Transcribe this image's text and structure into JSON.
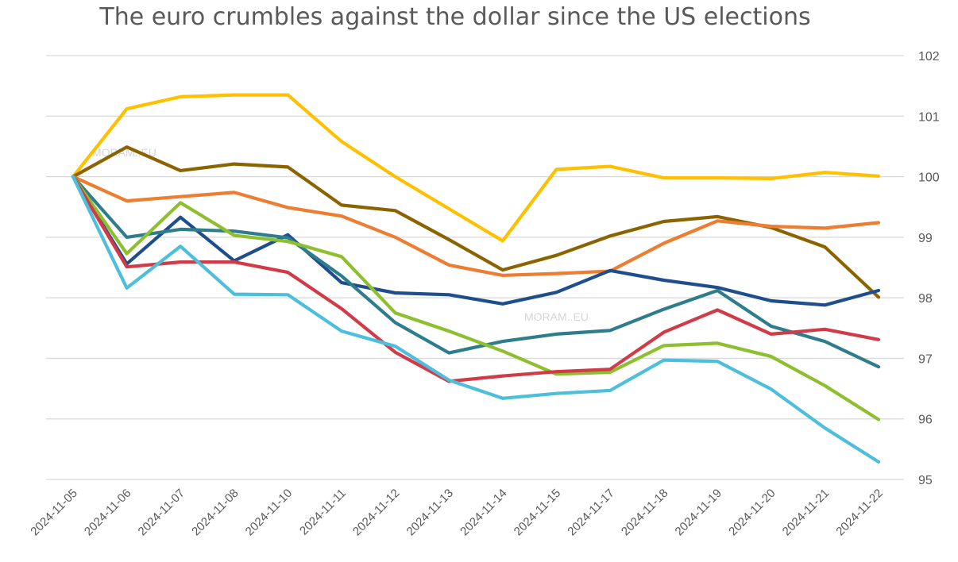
{
  "chart_data": {
    "type": "line",
    "title": "The euro crumbles against the dollar since the US elections",
    "xlabel": "",
    "ylabel": "",
    "ylim": [
      95,
      102
    ],
    "yticks": [
      95,
      96,
      97,
      98,
      99,
      100,
      101,
      102
    ],
    "grid": true,
    "y_axis_side": "right",
    "watermarks": [
      "MORAM..EU",
      "MORAM..EU"
    ],
    "categories": [
      "2024-11-05",
      "2024-11-06",
      "2024-11-07",
      "2024-11-08",
      "2024-11-10",
      "2024-11-11",
      "2024-11-12",
      "2024-11-13",
      "2024-11-14",
      "2024-11-15",
      "2024-11-17",
      "2024-11-18",
      "2024-11-19",
      "2024-11-20",
      "2024-11-21",
      "2024-11-22"
    ],
    "series": [
      {
        "color": "#FFC000",
        "values": [
          100,
          101.12,
          101.32,
          101.35,
          101.35,
          100.58,
          100.0,
          99.47,
          98.94,
          100.12,
          100.17,
          99.98,
          99.98,
          99.97,
          100.07,
          100.01
        ]
      },
      {
        "color": "#8B6400",
        "values": [
          100,
          100.49,
          100.1,
          100.21,
          100.16,
          99.53,
          99.44,
          98.96,
          98.46,
          98.7,
          99.02,
          99.26,
          99.34,
          99.16,
          98.84,
          98.01
        ]
      },
      {
        "color": "#ED7D31",
        "values": [
          100,
          99.6,
          99.67,
          99.74,
          99.49,
          99.35,
          99.0,
          98.54,
          98.37,
          98.4,
          98.44,
          98.9,
          99.27,
          99.18,
          99.15,
          99.24
        ]
      },
      {
        "color": "#1F4E8C",
        "values": [
          100,
          98.56,
          99.33,
          98.61,
          99.04,
          98.25,
          98.08,
          98.05,
          97.9,
          98.09,
          98.45,
          98.29,
          98.17,
          97.95,
          97.88,
          98.12
        ]
      },
      {
        "color": "#2E7D8C",
        "values": [
          100,
          99.0,
          99.13,
          99.1,
          98.99,
          98.36,
          97.59,
          97.09,
          97.28,
          97.4,
          97.46,
          97.81,
          98.12,
          97.53,
          97.28,
          96.86
        ]
      },
      {
        "color": "#8DBF2E",
        "values": [
          100,
          98.73,
          99.57,
          99.03,
          98.93,
          98.68,
          97.75,
          97.45,
          97.12,
          96.74,
          96.77,
          97.21,
          97.25,
          97.03,
          96.55,
          95.99
        ]
      },
      {
        "color": "#D13B47",
        "values": [
          100,
          98.51,
          98.59,
          98.59,
          98.42,
          97.82,
          97.1,
          96.62,
          96.71,
          96.78,
          96.82,
          97.43,
          97.8,
          97.4,
          97.48,
          97.31
        ]
      },
      {
        "color": "#4DBEDC",
        "values": [
          100,
          98.16,
          98.85,
          98.06,
          98.05,
          97.45,
          97.2,
          96.64,
          96.34,
          96.42,
          96.47,
          96.97,
          96.95,
          96.49,
          95.85,
          95.29
        ]
      }
    ]
  }
}
